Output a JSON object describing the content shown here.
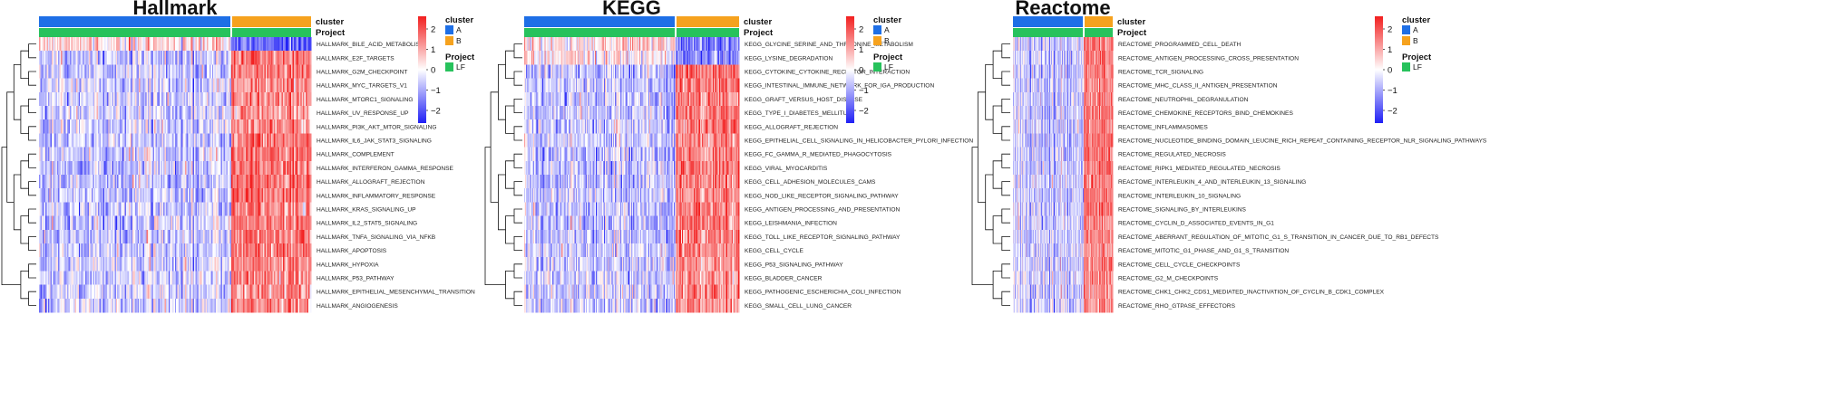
{
  "legends": {
    "cluster": {
      "title": "cluster",
      "entries": [
        {
          "label": "A",
          "color": "#1E6FE6"
        },
        {
          "label": "B",
          "color": "#F6A21E"
        }
      ]
    },
    "project": {
      "title": "Project",
      "entries": [
        {
          "label": "LF",
          "color": "#27C25C"
        }
      ]
    },
    "colorbar": {
      "ticks": [
        "2",
        "1",
        "0",
        "−1",
        "−2"
      ],
      "low_color": "#1F1FF5",
      "mid_color": "#FFFFFF",
      "high_color": "#F21F1F"
    }
  },
  "annotation_labels": {
    "cluster": "cluster",
    "project": "Project"
  },
  "chart_data": [
    {
      "type": "heatmap",
      "title": "Hallmark",
      "color_range": [
        -2.5,
        2.5
      ],
      "columns": {
        "cluster_A": 150,
        "cluster_B": 60
      },
      "rows": [
        {
          "name": "HALLMARK_BILE_ACID_METABOLISM",
          "mean_A": 0.4,
          "mean_B": -1.6
        },
        {
          "name": "HALLMARK_E2F_TARGETS",
          "mean_A": -0.6,
          "mean_B": 1.6
        },
        {
          "name": "HALLMARK_G2M_CHECKPOINT",
          "mean_A": -0.6,
          "mean_B": 1.6
        },
        {
          "name": "HALLMARK_MYC_TARGETS_V1",
          "mean_A": -0.5,
          "mean_B": 1.3
        },
        {
          "name": "HALLMARK_MTORC1_SIGNALING",
          "mean_A": -0.5,
          "mean_B": 1.3
        },
        {
          "name": "HALLMARK_UV_RESPONSE_UP",
          "mean_A": -0.5,
          "mean_B": 1.2
        },
        {
          "name": "HALLMARK_PI3K_AKT_MTOR_SIGNALING",
          "mean_A": -0.5,
          "mean_B": 1.3
        },
        {
          "name": "HALLMARK_IL6_JAK_STAT3_SIGNALING",
          "mean_A": -0.6,
          "mean_B": 1.5
        },
        {
          "name": "HALLMARK_COMPLEMENT",
          "mean_A": -0.6,
          "mean_B": 1.5
        },
        {
          "name": "HALLMARK_INTERFERON_GAMMA_RESPONSE",
          "mean_A": -0.6,
          "mean_B": 1.5
        },
        {
          "name": "HALLMARK_ALLOGRAFT_REJECTION",
          "mean_A": -0.6,
          "mean_B": 1.6
        },
        {
          "name": "HALLMARK_INFLAMMATORY_RESPONSE",
          "mean_A": -0.6,
          "mean_B": 1.5
        },
        {
          "name": "HALLMARK_KRAS_SIGNALING_UP",
          "mean_A": -0.6,
          "mean_B": 1.5
        },
        {
          "name": "HALLMARK_IL2_STAT5_SIGNALING",
          "mean_A": -0.6,
          "mean_B": 1.5
        },
        {
          "name": "HALLMARK_TNFA_SIGNALING_VIA_NFKB",
          "mean_A": -0.6,
          "mean_B": 1.5
        },
        {
          "name": "HALLMARK_APOPTOSIS",
          "mean_A": -0.6,
          "mean_B": 1.5
        },
        {
          "name": "HALLMARK_HYPOXIA",
          "mean_A": -0.5,
          "mean_B": 1.3
        },
        {
          "name": "HALLMARK_P53_PATHWAY",
          "mean_A": -0.5,
          "mean_B": 1.2
        },
        {
          "name": "HALLMARK_EPITHELIAL_MESENCHYMAL_TRANSITION",
          "mean_A": -0.5,
          "mean_B": 1.3
        },
        {
          "name": "HALLMARK_ANGIOGENESIS",
          "mean_A": -0.5,
          "mean_B": 1.2
        }
      ]
    },
    {
      "type": "heatmap",
      "title": "KEGG",
      "color_range": [
        -2.5,
        2.5
      ],
      "columns": {
        "cluster_A": 150,
        "cluster_B": 60
      },
      "rows": [
        {
          "name": "KEGG_GLYCINE_SERINE_AND_THREONINE_METABOLISM",
          "mean_A": 0.4,
          "mean_B": -1.5
        },
        {
          "name": "KEGG_LYSINE_DEGRADATION",
          "mean_A": 0.3,
          "mean_B": -1.2
        },
        {
          "name": "KEGG_CYTOKINE_CYTOKINE_RECEPTOR_INTERACTION",
          "mean_A": -0.6,
          "mean_B": 1.6
        },
        {
          "name": "KEGG_INTESTINAL_IMMUNE_NETWORK_FOR_IGA_PRODUCTION",
          "mean_A": -0.6,
          "mean_B": 1.5
        },
        {
          "name": "KEGG_GRAFT_VERSUS_HOST_DISEASE",
          "mean_A": -0.6,
          "mean_B": 1.5
        },
        {
          "name": "KEGG_TYPE_I_DIABETES_MELLITUS",
          "mean_A": -0.6,
          "mean_B": 1.5
        },
        {
          "name": "KEGG_ALLOGRAFT_REJECTION",
          "mean_A": -0.6,
          "mean_B": 1.5
        },
        {
          "name": "KEGG_EPITHELIAL_CELL_SIGNALING_IN_HELICOBACTER_PYLORI_INFECTION",
          "mean_A": -0.5,
          "mean_B": 1.3
        },
        {
          "name": "KEGG_FC_GAMMA_R_MEDIATED_PHAGOCYTOSIS",
          "mean_A": -0.6,
          "mean_B": 1.5
        },
        {
          "name": "KEGG_VIRAL_MYOCARDITIS",
          "mean_A": -0.6,
          "mean_B": 1.5
        },
        {
          "name": "KEGG_CELL_ADHESION_MOLECULES_CAMS",
          "mean_A": -0.6,
          "mean_B": 1.5
        },
        {
          "name": "KEGG_NOD_LIKE_RECEPTOR_SIGNALING_PATHWAY",
          "mean_A": -0.5,
          "mean_B": 1.3
        },
        {
          "name": "KEGG_ANTIGEN_PROCESSING_AND_PRESENTATION",
          "mean_A": -0.6,
          "mean_B": 1.5
        },
        {
          "name": "KEGG_LEISHMANIA_INFECTION",
          "mean_A": -0.6,
          "mean_B": 1.5
        },
        {
          "name": "KEGG_TOLL_LIKE_RECEPTOR_SIGNALING_PATHWAY",
          "mean_A": -0.6,
          "mean_B": 1.5
        },
        {
          "name": "KEGG_CELL_CYCLE",
          "mean_A": -0.5,
          "mean_B": 1.3
        },
        {
          "name": "KEGG_P53_SIGNALING_PATHWAY",
          "mean_A": -0.5,
          "mean_B": 1.2
        },
        {
          "name": "KEGG_BLADDER_CANCER",
          "mean_A": -0.5,
          "mean_B": 1.2
        },
        {
          "name": "KEGG_PATHOGENIC_ESCHERICHIA_COLI_INFECTION",
          "mean_A": -0.5,
          "mean_B": 1.2
        },
        {
          "name": "KEGG_SMALL_CELL_LUNG_CANCER",
          "mean_A": -0.5,
          "mean_B": 1.2
        }
      ]
    },
    {
      "type": "heatmap",
      "title": "Reactome",
      "color_range": [
        -2.5,
        2.5
      ],
      "columns": {
        "cluster_A": 150,
        "cluster_B": 60
      },
      "rows": [
        {
          "name": "REACTOME_PROGRAMMED_CELL_DEATH",
          "mean_A": -0.5,
          "mean_B": 1.4
        },
        {
          "name": "REACTOME_ANTIGEN_PROCESSING_CROSS_PRESENTATION",
          "mean_A": -0.6,
          "mean_B": 1.5
        },
        {
          "name": "REACTOME_TCR_SIGNALING",
          "mean_A": -0.6,
          "mean_B": 1.5
        },
        {
          "name": "REACTOME_MHC_CLASS_II_ANTIGEN_PRESENTATION",
          "mean_A": -0.6,
          "mean_B": 1.5
        },
        {
          "name": "REACTOME_NEUTROPHIL_DEGRANULATION",
          "mean_A": -0.6,
          "mean_B": 1.5
        },
        {
          "name": "REACTOME_CHEMOKINE_RECEPTORS_BIND_CHEMOKINES",
          "mean_A": -0.6,
          "mean_B": 1.5
        },
        {
          "name": "REACTOME_INFLAMMASOMES",
          "mean_A": -0.6,
          "mean_B": 1.5
        },
        {
          "name": "REACTOME_NUCLEOTIDE_BINDING_DOMAIN_LEUCINE_RICH_REPEAT_CONTAINING_RECEPTOR_NLR_SIGNALING_PATHWAYS",
          "mean_A": -0.6,
          "mean_B": 1.5
        },
        {
          "name": "REACTOME_REGULATED_NECROSIS",
          "mean_A": -0.6,
          "mean_B": 1.5
        },
        {
          "name": "REACTOME_RIPK1_MEDIATED_REGULATED_NECROSIS",
          "mean_A": -0.6,
          "mean_B": 1.5
        },
        {
          "name": "REACTOME_INTERLEUKIN_4_AND_INTERLEUKIN_13_SIGNALING",
          "mean_A": -0.6,
          "mean_B": 1.5
        },
        {
          "name": "REACTOME_INTERLEUKIN_10_SIGNALING",
          "mean_A": -0.6,
          "mean_B": 1.5
        },
        {
          "name": "REACTOME_SIGNALING_BY_INTERLEUKINS",
          "mean_A": -0.6,
          "mean_B": 1.5
        },
        {
          "name": "REACTOME_CYCLIN_D_ASSOCIATED_EVENTS_IN_G1",
          "mean_A": -0.5,
          "mean_B": 1.3
        },
        {
          "name": "REACTOME_ABERRANT_REGULATION_OF_MITOTIC_G1_S_TRANSITION_IN_CANCER_DUE_TO_RB1_DEFECTS",
          "mean_A": -0.5,
          "mean_B": 1.3
        },
        {
          "name": "REACTOME_MITOTIC_G1_PHASE_AND_G1_S_TRANSITION",
          "mean_A": -0.5,
          "mean_B": 1.3
        },
        {
          "name": "REACTOME_CELL_CYCLE_CHECKPOINTS",
          "mean_A": -0.5,
          "mean_B": 1.3
        },
        {
          "name": "REACTOME_G2_M_CHECKPOINTS",
          "mean_A": -0.5,
          "mean_B": 1.3
        },
        {
          "name": "REACTOME_CHK1_CHK2_CDS1_MEDIATED_INACTIVATION_OF_CYCLIN_B_CDK1_COMPLEX",
          "mean_A": -0.5,
          "mean_B": 1.3
        },
        {
          "name": "REACTOME_RHO_GTPASE_EFFECTORS",
          "mean_A": -0.5,
          "mean_B": 1.3
        }
      ]
    }
  ]
}
